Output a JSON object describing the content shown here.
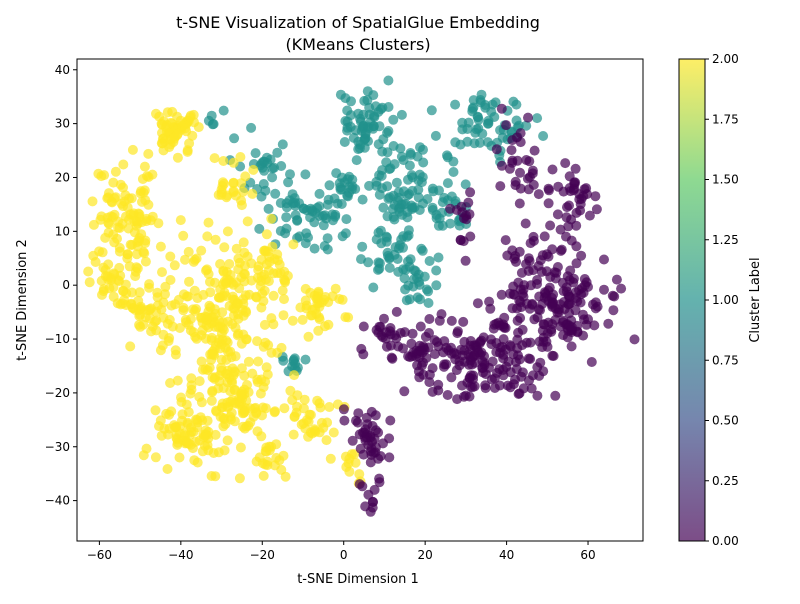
{
  "chart_data": {
    "type": "scatter",
    "title": "t-SNE Visualization of SpatialGlue Embedding",
    "subtitle": "(KMeans Clusters)",
    "xlabel": "t-SNE Dimension 1",
    "ylabel": "t-SNE Dimension 2",
    "xlim": [
      -65.5,
      73.5
    ],
    "ylim": [
      -47.5,
      42.0
    ],
    "xticks": [
      -60,
      -40,
      -20,
      0,
      20,
      40,
      60
    ],
    "yticks": [
      -40,
      -30,
      -20,
      -10,
      0,
      10,
      20,
      30,
      40
    ],
    "grid": false,
    "legend": "none",
    "point_alpha": 0.7,
    "colorbar": {
      "label": "Cluster Label",
      "range": [
        0.0,
        2.0
      ],
      "ticks": [
        "0.00",
        "0.25",
        "0.50",
        "0.75",
        "1.00",
        "1.25",
        "1.50",
        "1.75",
        "2.00"
      ],
      "colormap": "viridis",
      "colors": [
        "#440154",
        "#3b528b",
        "#21918c",
        "#5ec962",
        "#fde725"
      ]
    },
    "clusters": [
      {
        "label": 0,
        "color": "#440154",
        "regions": [
          {
            "cx": 54,
            "cy": -4,
            "rx": 12,
            "ry": 9,
            "n": 120
          },
          {
            "cx": 36,
            "cy": -14,
            "rx": 14,
            "ry": 8,
            "n": 150
          },
          {
            "cx": 56,
            "cy": 15,
            "rx": 6,
            "ry": 8,
            "n": 40
          },
          {
            "cx": 44,
            "cy": 22,
            "rx": 6,
            "ry": 6,
            "n": 30
          },
          {
            "cx": 48,
            "cy": 3,
            "rx": 10,
            "ry": 6,
            "n": 50
          },
          {
            "cx": 20,
            "cy": -14,
            "rx": 6,
            "ry": 6,
            "n": 40
          },
          {
            "cx": 10,
            "cy": -10,
            "rx": 5,
            "ry": 5,
            "n": 25
          },
          {
            "cx": 6,
            "cy": -28,
            "rx": 4,
            "ry": 4,
            "n": 40
          },
          {
            "cx": 7,
            "cy": -39,
            "rx": 3,
            "ry": 4,
            "n": 12
          },
          {
            "cx": 30,
            "cy": 14,
            "rx": 4,
            "ry": 6,
            "n": 15
          }
        ]
      },
      {
        "label": 1,
        "color": "#21918c",
        "regions": [
          {
            "cx": 5,
            "cy": 30,
            "rx": 7,
            "ry": 6,
            "n": 60
          },
          {
            "cx": 36,
            "cy": 30,
            "rx": 10,
            "ry": 5,
            "n": 60
          },
          {
            "cx": 14,
            "cy": 18,
            "rx": 8,
            "ry": 7,
            "n": 70
          },
          {
            "cx": -10,
            "cy": 13,
            "rx": 9,
            "ry": 6,
            "n": 60
          },
          {
            "cx": -21,
            "cy": 22,
            "rx": 5,
            "ry": 5,
            "n": 25
          },
          {
            "cx": 25,
            "cy": 15,
            "rx": 6,
            "ry": 6,
            "n": 30
          },
          {
            "cx": 12,
            "cy": 5,
            "rx": 8,
            "ry": 5,
            "n": 40
          },
          {
            "cx": 0,
            "cy": 18,
            "rx": 5,
            "ry": 4,
            "n": 25
          },
          {
            "cx": 18,
            "cy": 0,
            "rx": 5,
            "ry": 3,
            "n": 20
          },
          {
            "cx": -12,
            "cy": -15,
            "rx": 3,
            "ry": 3,
            "n": 12
          },
          {
            "cx": -32,
            "cy": 31,
            "rx": 2,
            "ry": 2,
            "n": 5
          }
        ]
      },
      {
        "label": 2,
        "color": "#fde725",
        "regions": [
          {
            "cx": -53,
            "cy": 12,
            "rx": 8,
            "ry": 10,
            "n": 110
          },
          {
            "cx": -42,
            "cy": 29,
            "rx": 5,
            "ry": 4,
            "n": 60
          },
          {
            "cx": -30,
            "cy": -8,
            "rx": 13,
            "ry": 14,
            "n": 220
          },
          {
            "cx": -37,
            "cy": -27,
            "rx": 9,
            "ry": 7,
            "n": 90
          },
          {
            "cx": -25,
            "cy": -21,
            "rx": 7,
            "ry": 7,
            "n": 60
          },
          {
            "cx": -20,
            "cy": 3,
            "rx": 8,
            "ry": 6,
            "n": 50
          },
          {
            "cx": -5,
            "cy": -4,
            "rx": 5,
            "ry": 4,
            "n": 35
          },
          {
            "cx": -8,
            "cy": -25,
            "rx": 7,
            "ry": 4,
            "n": 35
          },
          {
            "cx": -17,
            "cy": -32,
            "rx": 4,
            "ry": 3,
            "n": 20
          },
          {
            "cx": -28,
            "cy": 18,
            "rx": 5,
            "ry": 5,
            "n": 25
          },
          {
            "cx": 2,
            "cy": -34,
            "rx": 3,
            "ry": 3,
            "n": 12
          },
          {
            "cx": -47,
            "cy": -5,
            "rx": 6,
            "ry": 6,
            "n": 50
          },
          {
            "cx": -56,
            "cy": 0,
            "rx": 4,
            "ry": 4,
            "n": 25
          }
        ]
      }
    ]
  }
}
